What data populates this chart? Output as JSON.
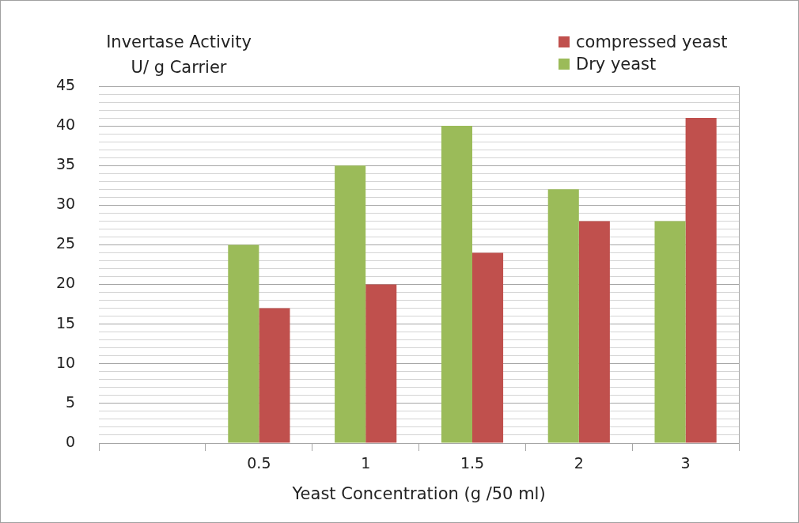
{
  "chart_data": {
    "type": "bar",
    "ylabel": "Invertase Activity\nU/ g Carrier",
    "xlabel": "Yeast Concentration (g /50 ml)",
    "categories": [
      null,
      "0.5",
      "1",
      "1.5",
      "2",
      "3"
    ],
    "series": [
      {
        "name": "Dry yeast",
        "color": "#9bbb59",
        "values": [
          null,
          25,
          35,
          40,
          32,
          28
        ]
      },
      {
        "name": "compressed yeast",
        "color": "#c0504d",
        "values": [
          null,
          17,
          20,
          24,
          28,
          41
        ]
      }
    ],
    "ylim": [
      0,
      45
    ],
    "yticks": [
      0,
      {
        "value": 1,
        "label": null
      },
      {
        "value": 2,
        "label": null
      },
      {
        "value": 3,
        "label": null
      },
      {
        "value": 4,
        "label": null
      },
      5,
      {
        "value": 6,
        "label": null
      },
      {
        "value": 7,
        "label": null
      },
      {
        "value": 8,
        "label": null
      },
      {
        "value": 9,
        "label": null
      },
      10,
      {
        "value": 11,
        "label": null
      },
      {
        "value": 12,
        "label": null
      },
      {
        "value": 13,
        "label": null
      },
      {
        "value": 14,
        "label": null
      },
      15,
      {
        "value": 16,
        "label": null
      },
      {
        "value": 17,
        "label": null
      },
      {
        "value": 18,
        "label": null
      },
      {
        "value": 19,
        "label": null
      },
      20,
      {
        "value": 21,
        "label": null
      },
      {
        "value": 22,
        "label": null
      },
      {
        "value": 23,
        "label": null
      },
      {
        "value": 24,
        "label": null
      },
      25,
      {
        "value": 26,
        "label": null
      },
      {
        "value": 27,
        "label": null
      },
      {
        "value": 28,
        "label": null
      },
      {
        "value": 29,
        "label": null
      },
      30,
      {
        "value": 31,
        "label": null
      },
      {
        "value": 32,
        "label": null
      },
      {
        "value": 33,
        "label": null
      },
      {
        "value": 34,
        "label": null
      },
      35,
      {
        "value": 36,
        "label": null
      },
      {
        "value": 37,
        "label": null
      },
      {
        "value": 38,
        "label": null
      },
      {
        "value": 39,
        "label": null
      },
      40,
      {
        "value": 41,
        "label": null
      },
      {
        "value": 42,
        "label": null
      },
      {
        "value": 43,
        "label": null
      },
      {
        "value": 44,
        "label": null
      },
      45
    ],
    "grid": "y",
    "legend": "top right"
  }
}
